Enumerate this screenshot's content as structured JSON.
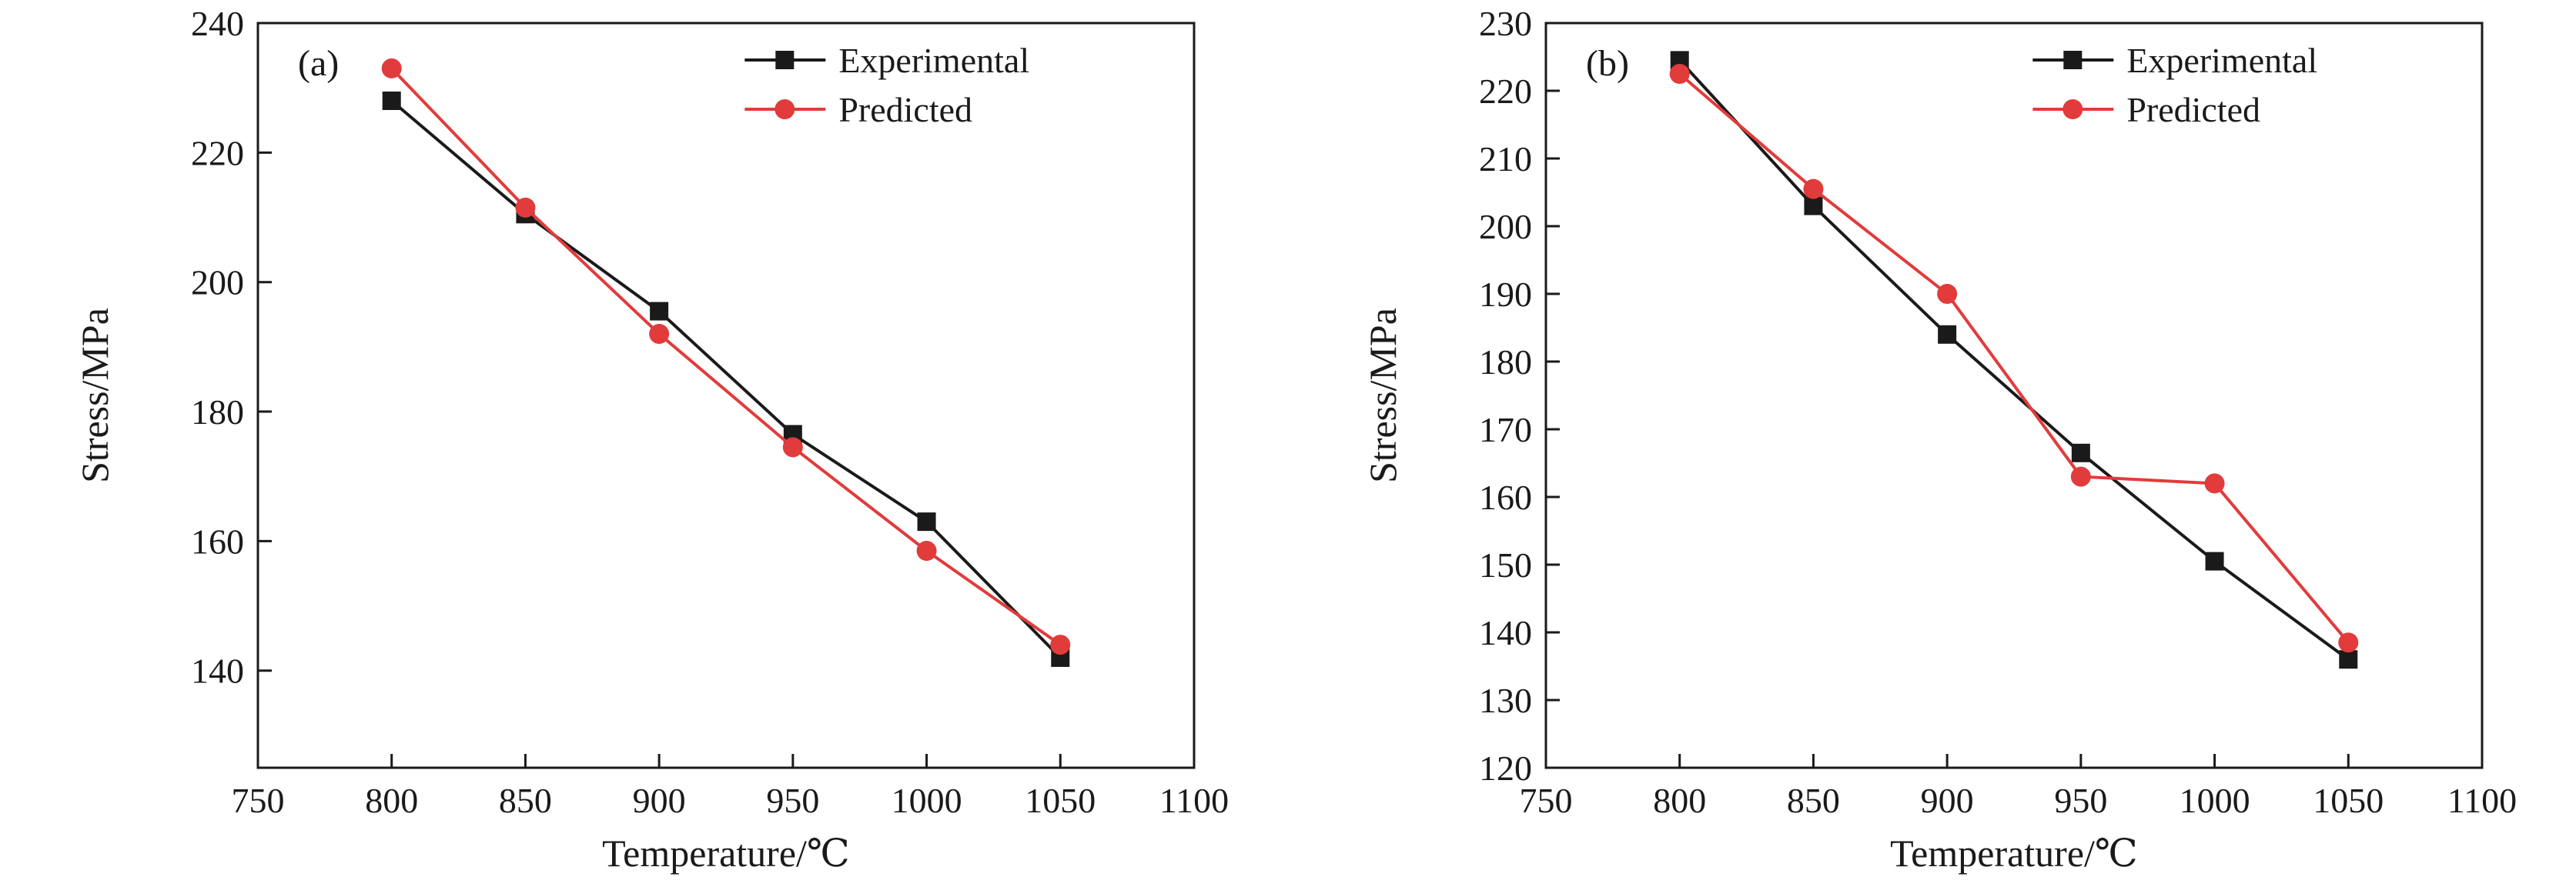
{
  "page": {
    "background": "#ffffff",
    "text_color": "#1a1a1a"
  },
  "chart_data": [
    {
      "type": "line",
      "panel_label": "(a)",
      "title": "",
      "xlabel": "Temperature/℃",
      "ylabel": "Stress/MPa",
      "xlim": [
        750,
        1100
      ],
      "xticks": [
        750,
        800,
        850,
        900,
        950,
        1000,
        1050,
        1100
      ],
      "ylim": [
        125,
        240
      ],
      "yticks": [
        140,
        160,
        180,
        200,
        220,
        240
      ],
      "grid": false,
      "legend_position": "top-center-inside",
      "x": [
        800,
        850,
        900,
        950,
        1000,
        1050
      ],
      "series": [
        {
          "name": "Experimental",
          "color": "#1a1a1a",
          "marker": "square",
          "values": [
            228,
            210.5,
            195.5,
            176.5,
            163,
            142
          ]
        },
        {
          "name": "Predicted",
          "color": "#e23b3b",
          "marker": "circle",
          "values": [
            233,
            211.5,
            192,
            174.5,
            158.5,
            144
          ]
        }
      ]
    },
    {
      "type": "line",
      "panel_label": "(b)",
      "title": "",
      "xlabel": "Temperature/℃",
      "ylabel": "Stress/MPa",
      "xlim": [
        750,
        1100
      ],
      "xticks": [
        750,
        800,
        850,
        900,
        950,
        1000,
        1050,
        1100
      ],
      "ylim": [
        120,
        230
      ],
      "yticks": [
        120,
        130,
        140,
        150,
        160,
        170,
        180,
        190,
        200,
        210,
        220,
        230
      ],
      "grid": false,
      "legend_position": "top-center-inside",
      "x": [
        800,
        850,
        900,
        950,
        1000,
        1050
      ],
      "series": [
        {
          "name": "Experimental",
          "color": "#1a1a1a",
          "marker": "square",
          "values": [
            224.5,
            203,
            184,
            166.5,
            150.5,
            136
          ]
        },
        {
          "name": "Predicted",
          "color": "#e23b3b",
          "marker": "circle",
          "values": [
            222.5,
            205.5,
            190,
            163,
            162,
            138.5
          ]
        }
      ]
    }
  ]
}
